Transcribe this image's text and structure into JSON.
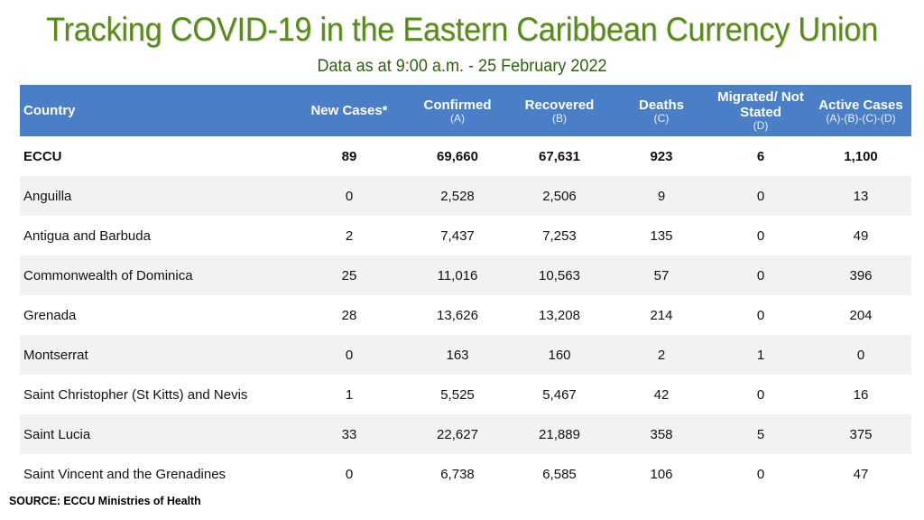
{
  "title": "Tracking COVID-19  in the Eastern Caribbean Currency Union",
  "subtitle": "Data as at 9:00 a.m. - 25 February 2022",
  "table": {
    "headers": [
      {
        "label": "Country",
        "sub": ""
      },
      {
        "label": "New Cases*",
        "sub": ""
      },
      {
        "label": "Confirmed",
        "sub": "(A)"
      },
      {
        "label": "Recovered",
        "sub": "(B)"
      },
      {
        "label": "Deaths",
        "sub": "(C)"
      },
      {
        "label": "Migrated/ Not Stated",
        "sub": "(D)"
      },
      {
        "label": "Active Cases",
        "sub": "(A)-(B)-(C)-(D)"
      }
    ],
    "rows": [
      [
        "ECCU",
        "89",
        "69,660",
        "67,631",
        "923",
        "6",
        "1,100"
      ],
      [
        "Anguilla",
        "0",
        "2,528",
        "2,506",
        "9",
        "0",
        "13"
      ],
      [
        "Antigua and Barbuda",
        "2",
        "7,437",
        "7,253",
        "135",
        "0",
        "49"
      ],
      [
        "Commonwealth of Dominica",
        "25",
        "11,016",
        "10,563",
        "57",
        "0",
        "396"
      ],
      [
        "Grenada",
        "28",
        "13,626",
        "13,208",
        "214",
        "0",
        "204"
      ],
      [
        "Montserrat",
        "0",
        "163",
        "160",
        "2",
        "1",
        "0"
      ],
      [
        "Saint Christopher (St Kitts) and Nevis",
        "1",
        "5,525",
        "5,467",
        "42",
        "0",
        "16"
      ],
      [
        "Saint Lucia",
        "33",
        "22,627",
        "21,889",
        "358",
        "5",
        "375"
      ],
      [
        "Saint Vincent and the Grenadines",
        "0",
        "6,738",
        "6,585",
        "106",
        "0",
        "47"
      ]
    ]
  },
  "source": "SOURCE: ECCU Ministries of Health",
  "colors": {
    "title": "#5a8a1e",
    "subtitle": "#2f5f12",
    "header_bg": "#4a7ec7",
    "row_alt_bg": "#f2f2f2"
  }
}
